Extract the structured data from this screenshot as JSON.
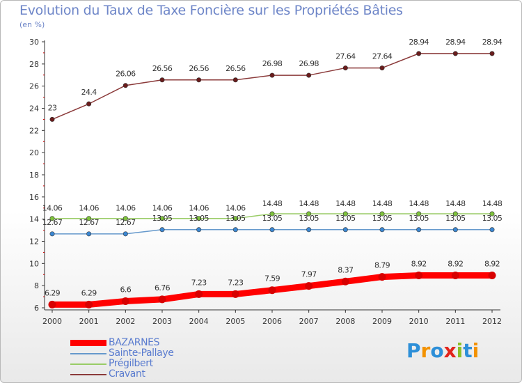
{
  "title": "Evolution du Taux de Taxe Foncière sur les Propriétés Bâties",
  "subtitle": "(en %)",
  "brand": {
    "letters": [
      "P",
      "r",
      "o",
      "x",
      "i",
      "t",
      "i"
    ],
    "colors": [
      "#2d8fd8",
      "#f39200",
      "#2d8fd8",
      "#e2241b",
      "#8cbf26",
      "#2d8fd8",
      "#f39200"
    ]
  },
  "chart_data": {
    "type": "line",
    "x": [
      "2000",
      "2001",
      "2002",
      "2003",
      "2004",
      "2005",
      "2006",
      "2007",
      "2008",
      "2009",
      "2010",
      "2011",
      "2012"
    ],
    "ylim": [
      6,
      30
    ],
    "yticks": [
      "6",
      "8",
      "10",
      "12",
      "14",
      "16",
      "18",
      "20",
      "22",
      "24",
      "26",
      "28",
      "30"
    ],
    "series": [
      {
        "name": "BAZARNES",
        "color": "#ff0000",
        "marker": "#d80000",
        "values": [
          6.29,
          6.29,
          6.6,
          6.76,
          7.23,
          7.23,
          7.59,
          7.97,
          8.37,
          8.79,
          8.92,
          8.92,
          8.92
        ],
        "labels": [
          "6.29",
          "6.29",
          "6.6",
          "6.76",
          "7.23",
          "7.23",
          "7.59",
          "7.97",
          "8.37",
          "8.79",
          "8.92",
          "8.92",
          "8.92"
        ]
      },
      {
        "name": "Sainte-Pallaye",
        "color": "#6699cc",
        "marker": "#3b87d2",
        "values": [
          12.67,
          12.67,
          12.67,
          13.05,
          13.05,
          13.05,
          13.05,
          13.05,
          13.05,
          13.05,
          13.05,
          13.05,
          13.05
        ],
        "labels": [
          "12.67",
          "12.67",
          "12.67",
          "13.05",
          "13.05",
          "13.05",
          "13.05",
          "13.05",
          "13.05",
          "13.05",
          "13.05",
          "13.05",
          "13.05"
        ]
      },
      {
        "name": "Prégilbert",
        "color": "#99cc66",
        "marker": "#7ec23c",
        "values": [
          14.06,
          14.06,
          14.06,
          14.06,
          14.06,
          14.06,
          14.48,
          14.48,
          14.48,
          14.48,
          14.48,
          14.48,
          14.48
        ],
        "labels": [
          "14.06",
          "14.06",
          "14.06",
          "14.06",
          "14.06",
          "14.06",
          "14.48",
          "14.48",
          "14.48",
          "14.48",
          "14.48",
          "14.48",
          "14.48"
        ]
      },
      {
        "name": "Cravant",
        "color": "#8b3a3a",
        "marker": "#6b1c1c",
        "values": [
          23,
          24.4,
          26.06,
          26.56,
          26.56,
          26.56,
          26.98,
          26.98,
          27.64,
          27.64,
          28.94,
          28.94,
          28.94
        ],
        "labels": [
          "23",
          "24.4",
          "26.06",
          "26.56",
          "26.56",
          "26.56",
          "26.98",
          "26.98",
          "27.64",
          "27.64",
          "28.94",
          "28.94",
          "28.94"
        ]
      }
    ]
  }
}
